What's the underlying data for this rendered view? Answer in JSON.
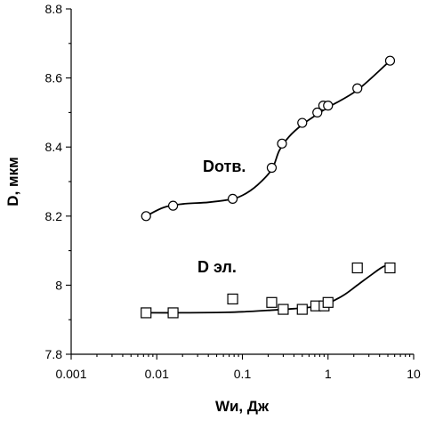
{
  "chart_data": {
    "type": "scatter",
    "title": "",
    "xlabel": "Wи, Дж",
    "ylabel": "D, мкм",
    "xscale": "log",
    "xlim": [
      0.001,
      10
    ],
    "ylim": [
      7.8,
      8.8
    ],
    "x_ticks": [
      "0.001",
      "0.01",
      "0.1",
      "1",
      "10"
    ],
    "y_ticks": [
      "7.8",
      "8",
      "8.2",
      "8.4",
      "8.6",
      "8.8"
    ],
    "grid": false,
    "legend": "none",
    "series": [
      {
        "name": "Dотв.",
        "marker": "circle",
        "x": [
          0.0075,
          0.0155,
          0.077,
          0.22,
          0.29,
          0.5,
          0.75,
          0.88,
          1.0,
          2.2,
          5.3
        ],
        "y": [
          8.2,
          8.23,
          8.25,
          8.34,
          8.41,
          8.47,
          8.5,
          8.52,
          8.52,
          8.57,
          8.65
        ],
        "curve": [
          [
            0.0075,
            8.2
          ],
          [
            0.012,
            8.225
          ],
          [
            0.02,
            8.235
          ],
          [
            0.04,
            8.24
          ],
          [
            0.07,
            8.248
          ],
          [
            0.1,
            8.26
          ],
          [
            0.15,
            8.29
          ],
          [
            0.22,
            8.335
          ],
          [
            0.27,
            8.39
          ],
          [
            0.35,
            8.43
          ],
          [
            0.5,
            8.465
          ],
          [
            0.75,
            8.495
          ],
          [
            1.0,
            8.515
          ],
          [
            2.2,
            8.565
          ],
          [
            5.3,
            8.65
          ]
        ]
      },
      {
        "name": "D эл.",
        "marker": "square",
        "x": [
          0.0075,
          0.0155,
          0.077,
          0.22,
          0.3,
          0.5,
          0.72,
          0.9,
          1.0,
          2.2,
          5.3
        ],
        "y": [
          7.92,
          7.92,
          7.96,
          7.95,
          7.93,
          7.93,
          7.94,
          7.94,
          7.95,
          8.05,
          8.05
        ],
        "curve": [
          [
            0.0075,
            7.92
          ],
          [
            0.02,
            7.92
          ],
          [
            0.05,
            7.921
          ],
          [
            0.1,
            7.923
          ],
          [
            0.2,
            7.927
          ],
          [
            0.4,
            7.932
          ],
          [
            0.7,
            7.938
          ],
          [
            1.0,
            7.948
          ],
          [
            1.5,
            7.97
          ],
          [
            2.2,
            8.0
          ],
          [
            3.2,
            8.03
          ],
          [
            4.3,
            8.052
          ],
          [
            5.3,
            8.06
          ]
        ]
      }
    ]
  }
}
